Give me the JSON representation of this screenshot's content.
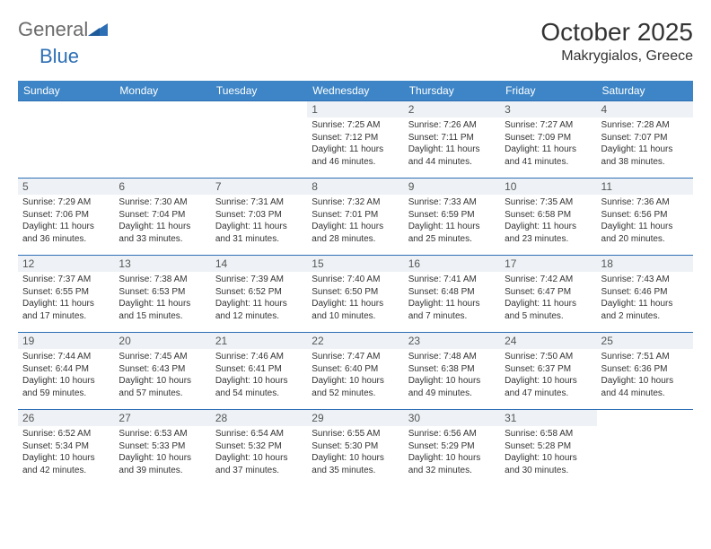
{
  "brand": {
    "part1": "General",
    "part2": "Blue"
  },
  "title": "October 2025",
  "location": "Makrygialos, Greece",
  "colors": {
    "header_bg": "#3d85c6",
    "header_text": "#ffffff",
    "rule": "#2d6fb5",
    "daynum_bg": "#eef2f6",
    "text": "#333333",
    "logo_gray": "#6b6b6b",
    "logo_blue": "#2d6fb5"
  },
  "typography": {
    "title_fontsize": 28,
    "location_fontsize": 16,
    "weekday_fontsize": 12,
    "body_fontsize": 10
  },
  "weekdays": [
    "Sunday",
    "Monday",
    "Tuesday",
    "Wednesday",
    "Thursday",
    "Friday",
    "Saturday"
  ],
  "weeks": [
    [
      null,
      null,
      null,
      {
        "n": "1",
        "sr": "7:25 AM",
        "ss": "7:12 PM",
        "dl": "11 hours and 46 minutes."
      },
      {
        "n": "2",
        "sr": "7:26 AM",
        "ss": "7:11 PM",
        "dl": "11 hours and 44 minutes."
      },
      {
        "n": "3",
        "sr": "7:27 AM",
        "ss": "7:09 PM",
        "dl": "11 hours and 41 minutes."
      },
      {
        "n": "4",
        "sr": "7:28 AM",
        "ss": "7:07 PM",
        "dl": "11 hours and 38 minutes."
      }
    ],
    [
      {
        "n": "5",
        "sr": "7:29 AM",
        "ss": "7:06 PM",
        "dl": "11 hours and 36 minutes."
      },
      {
        "n": "6",
        "sr": "7:30 AM",
        "ss": "7:04 PM",
        "dl": "11 hours and 33 minutes."
      },
      {
        "n": "7",
        "sr": "7:31 AM",
        "ss": "7:03 PM",
        "dl": "11 hours and 31 minutes."
      },
      {
        "n": "8",
        "sr": "7:32 AM",
        "ss": "7:01 PM",
        "dl": "11 hours and 28 minutes."
      },
      {
        "n": "9",
        "sr": "7:33 AM",
        "ss": "6:59 PM",
        "dl": "11 hours and 25 minutes."
      },
      {
        "n": "10",
        "sr": "7:35 AM",
        "ss": "6:58 PM",
        "dl": "11 hours and 23 minutes."
      },
      {
        "n": "11",
        "sr": "7:36 AM",
        "ss": "6:56 PM",
        "dl": "11 hours and 20 minutes."
      }
    ],
    [
      {
        "n": "12",
        "sr": "7:37 AM",
        "ss": "6:55 PM",
        "dl": "11 hours and 17 minutes."
      },
      {
        "n": "13",
        "sr": "7:38 AM",
        "ss": "6:53 PM",
        "dl": "11 hours and 15 minutes."
      },
      {
        "n": "14",
        "sr": "7:39 AM",
        "ss": "6:52 PM",
        "dl": "11 hours and 12 minutes."
      },
      {
        "n": "15",
        "sr": "7:40 AM",
        "ss": "6:50 PM",
        "dl": "11 hours and 10 minutes."
      },
      {
        "n": "16",
        "sr": "7:41 AM",
        "ss": "6:48 PM",
        "dl": "11 hours and 7 minutes."
      },
      {
        "n": "17",
        "sr": "7:42 AM",
        "ss": "6:47 PM",
        "dl": "11 hours and 5 minutes."
      },
      {
        "n": "18",
        "sr": "7:43 AM",
        "ss": "6:46 PM",
        "dl": "11 hours and 2 minutes."
      }
    ],
    [
      {
        "n": "19",
        "sr": "7:44 AM",
        "ss": "6:44 PM",
        "dl": "10 hours and 59 minutes."
      },
      {
        "n": "20",
        "sr": "7:45 AM",
        "ss": "6:43 PM",
        "dl": "10 hours and 57 minutes."
      },
      {
        "n": "21",
        "sr": "7:46 AM",
        "ss": "6:41 PM",
        "dl": "10 hours and 54 minutes."
      },
      {
        "n": "22",
        "sr": "7:47 AM",
        "ss": "6:40 PM",
        "dl": "10 hours and 52 minutes."
      },
      {
        "n": "23",
        "sr": "7:48 AM",
        "ss": "6:38 PM",
        "dl": "10 hours and 49 minutes."
      },
      {
        "n": "24",
        "sr": "7:50 AM",
        "ss": "6:37 PM",
        "dl": "10 hours and 47 minutes."
      },
      {
        "n": "25",
        "sr": "7:51 AM",
        "ss": "6:36 PM",
        "dl": "10 hours and 44 minutes."
      }
    ],
    [
      {
        "n": "26",
        "sr": "6:52 AM",
        "ss": "5:34 PM",
        "dl": "10 hours and 42 minutes."
      },
      {
        "n": "27",
        "sr": "6:53 AM",
        "ss": "5:33 PM",
        "dl": "10 hours and 39 minutes."
      },
      {
        "n": "28",
        "sr": "6:54 AM",
        "ss": "5:32 PM",
        "dl": "10 hours and 37 minutes."
      },
      {
        "n": "29",
        "sr": "6:55 AM",
        "ss": "5:30 PM",
        "dl": "10 hours and 35 minutes."
      },
      {
        "n": "30",
        "sr": "6:56 AM",
        "ss": "5:29 PM",
        "dl": "10 hours and 32 minutes."
      },
      {
        "n": "31",
        "sr": "6:58 AM",
        "ss": "5:28 PM",
        "dl": "10 hours and 30 minutes."
      },
      null
    ]
  ],
  "labels": {
    "sunrise": "Sunrise: ",
    "sunset": "Sunset: ",
    "daylight": "Daylight: "
  }
}
